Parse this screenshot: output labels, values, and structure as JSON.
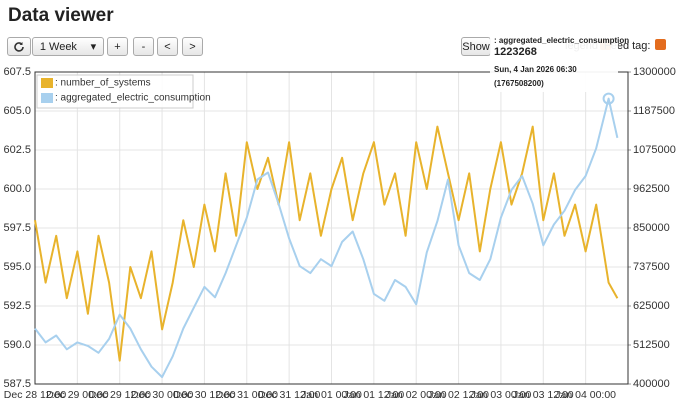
{
  "header": {
    "title": "Data viewer",
    "range": "1 Week",
    "buttons": [
      "+",
      "-",
      "<",
      ">"
    ],
    "show": "Show",
    "legend": "legend",
    "feed_tag": "Feed tag:"
  },
  "tooltip": {
    "series": ": aggregated_electric_consumption",
    "value": 1223268,
    "date": "Sun, 4 Jan 2026 06:30",
    "timestamp": "(1767508200)"
  },
  "chart_data": {
    "type": "line",
    "grid": true,
    "legend": "top-left",
    "x": [
      "Dec 28 12:00",
      "Dec 28 15:00",
      "Dec 28 18:00",
      "Dec 28 21:00",
      "Dec 29 00:00",
      "Dec 29 03:00",
      "Dec 29 06:00",
      "Dec 29 09:00",
      "Dec 29 12:00",
      "Dec 29 15:00",
      "Dec 29 18:00",
      "Dec 29 21:00",
      "Dec 30 00:00",
      "Dec 30 03:00",
      "Dec 30 06:00",
      "Dec 30 09:00",
      "Dec 30 12:00",
      "Dec 30 15:00",
      "Dec 30 18:00",
      "Dec 30 21:00",
      "Dec 31 00:00",
      "Dec 31 03:00",
      "Dec 31 06:00",
      "Dec 31 09:00",
      "Dec 31 12:00",
      "Dec 31 15:00",
      "Dec 31 18:00",
      "Dec 31 21:00",
      "Jan 01 00:00",
      "Jan 01 03:00",
      "Jan 01 06:00",
      "Jan 01 09:00",
      "Jan 01 12:00",
      "Jan 01 15:00",
      "Jan 01 18:00",
      "Jan 01 21:00",
      "Jan 02 00:00",
      "Jan 02 03:00",
      "Jan 02 06:00",
      "Jan 02 09:00",
      "Jan 02 12:00",
      "Jan 02 15:00",
      "Jan 02 18:00",
      "Jan 02 21:00",
      "Jan 03 00:00",
      "Jan 03 03:00",
      "Jan 03 06:00",
      "Jan 03 09:00",
      "Jan 03 12:00",
      "Jan 03 15:00",
      "Jan 03 18:00",
      "Jan 03 21:00",
      "Jan 04 00:00",
      "Jan 04 03:00",
      "Jan 04 06:30",
      "Jan 04 09:00"
    ],
    "xlim": [
      "Dec 28 12:00",
      "Jan 04 12:00"
    ],
    "xticks": [
      "Dec 28 12:00",
      "Dec 29 00:00",
      "Dec 29 12:00",
      "Dec 30 00:00",
      "Dec 30 12:00",
      "Dec 31 00:00",
      "Dec 31 12:00",
      "Jan 01 00:00",
      "Jan 01 12:00",
      "Jan 02 00:00",
      "Jan 02 12:00",
      "Jan 03 00:00",
      "Jan 03 12:00",
      "Jan 04 00:00"
    ],
    "ylim": [
      587.5,
      607.5
    ],
    "yticks": [
      587.5,
      {
        "value": 590,
        "label": "590.0"
      },
      592.5,
      {
        "value": 595,
        "label": "595.0"
      },
      597.5,
      {
        "value": 600,
        "label": "600.0"
      },
      602.5,
      {
        "value": 605,
        "label": "605.0"
      },
      607.5
    ],
    "y2lim": [
      400000,
      1300000
    ],
    "y2ticks": [
      400000,
      512500,
      625000,
      737500,
      850000,
      962500,
      1075000,
      1187500,
      1300000
    ],
    "series": [
      {
        "name": ": number_of_systems",
        "color": "#e8b32c",
        "values": [
          598,
          594,
          597,
          593,
          596,
          592,
          597,
          594,
          589,
          595,
          593,
          596,
          591,
          594,
          598,
          595,
          599,
          596,
          601,
          597,
          603,
          600,
          602,
          599,
          603,
          598,
          601,
          597,
          600,
          602,
          598,
          601,
          603,
          599,
          601,
          597,
          603,
          600,
          604,
          601,
          598,
          601,
          596,
          600,
          603,
          599,
          601,
          604,
          598,
          601,
          597,
          599,
          596,
          599,
          594,
          593
        ]
      },
      {
        "name": ": aggregated_electric_consumption",
        "color": "#a8d0ee",
        "axis": "y2",
        "values": [
          560000,
          520000,
          540000,
          500000,
          520000,
          510000,
          490000,
          530000,
          600000,
          560000,
          500000,
          450000,
          420000,
          480000,
          560000,
          620000,
          680000,
          650000,
          720000,
          800000,
          880000,
          990000,
          1010000,
          920000,
          820000,
          740000,
          720000,
          760000,
          740000,
          810000,
          840000,
          760000,
          660000,
          640000,
          700000,
          680000,
          630000,
          780000,
          870000,
          990000,
          800000,
          720000,
          700000,
          760000,
          880000,
          960000,
          1000000,
          920000,
          800000,
          860000,
          900000,
          960000,
          1000000,
          1080000,
          1223268,
          1110000
        ]
      }
    ]
  }
}
